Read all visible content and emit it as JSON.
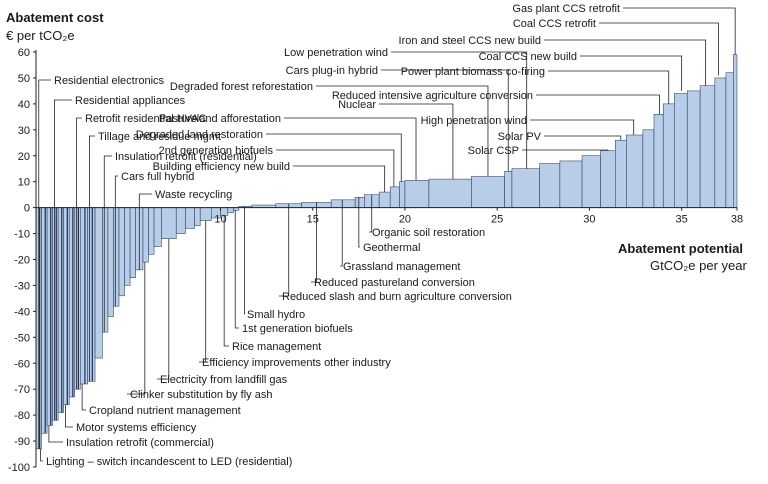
{
  "chart_data": {
    "type": "bar",
    "title": "",
    "ylabel": "Abatement cost",
    "yunit": "€ per tCO₂e",
    "xlabel": "Abatement potential",
    "xunit": "GtCO₂e per year",
    "ylim": [
      -100,
      60
    ],
    "xlim": [
      0,
      38
    ],
    "yticks": [
      60,
      50,
      40,
      30,
      20,
      10,
      0,
      -10,
      -20,
      -30,
      -40,
      -50,
      -60,
      -70,
      -80,
      -90,
      -100
    ],
    "xticks": [
      10,
      15,
      20,
      25,
      30,
      35,
      38
    ],
    "colors": {
      "bar_light": "#b8cde8",
      "bar_dark": "#1e2d55",
      "bar_edge": "#1e2d55"
    },
    "series": [
      {
        "x0": 0.0,
        "x1": 0.3,
        "value": -93
      },
      {
        "x0": 0.3,
        "x1": 0.6,
        "value": -87
      },
      {
        "x0": 0.6,
        "x1": 0.9,
        "value": -84
      },
      {
        "x0": 0.9,
        "x1": 1.2,
        "value": -82
      },
      {
        "x0": 1.2,
        "x1": 1.5,
        "value": -79
      },
      {
        "x0": 1.5,
        "x1": 1.8,
        "value": -76
      },
      {
        "x0": 1.8,
        "x1": 2.1,
        "value": -73
      },
      {
        "x0": 2.1,
        "x1": 2.4,
        "value": -70
      },
      {
        "x0": 2.4,
        "x1": 2.8,
        "value": -68
      },
      {
        "x0": 2.8,
        "x1": 3.2,
        "value": -67
      },
      {
        "x0": 3.2,
        "x1": 3.6,
        "value": -58
      },
      {
        "x0": 3.6,
        "x1": 3.9,
        "value": -48
      },
      {
        "x0": 3.9,
        "x1": 4.2,
        "value": -42
      },
      {
        "x0": 4.2,
        "x1": 4.5,
        "value": -38
      },
      {
        "x0": 4.5,
        "x1": 4.8,
        "value": -34
      },
      {
        "x0": 4.8,
        "x1": 5.1,
        "value": -30
      },
      {
        "x0": 5.1,
        "x1": 5.4,
        "value": -27
      },
      {
        "x0": 5.4,
        "x1": 5.8,
        "value": -24
      },
      {
        "x0": 5.8,
        "x1": 6.1,
        "value": -21
      },
      {
        "x0": 6.1,
        "x1": 6.4,
        "value": -18
      },
      {
        "x0": 6.4,
        "x1": 6.8,
        "value": -15
      },
      {
        "x0": 6.8,
        "x1": 7.6,
        "value": -12
      },
      {
        "x0": 7.6,
        "x1": 8.1,
        "value": -10
      },
      {
        "x0": 8.1,
        "x1": 8.6,
        "value": -8
      },
      {
        "x0": 8.6,
        "x1": 8.9,
        "value": -7
      },
      {
        "x0": 8.9,
        "x1": 9.5,
        "value": -5
      },
      {
        "x0": 9.5,
        "x1": 10.0,
        "value": -4
      },
      {
        "x0": 10.0,
        "x1": 10.4,
        "value": -3
      },
      {
        "x0": 10.4,
        "x1": 10.7,
        "value": -2
      },
      {
        "x0": 10.7,
        "x1": 11.0,
        "value": -1
      },
      {
        "x0": 11.0,
        "x1": 11.7,
        "value": 0.5
      },
      {
        "x0": 11.7,
        "x1": 13.0,
        "value": 1
      },
      {
        "x0": 13.0,
        "x1": 14.4,
        "value": 1.5
      },
      {
        "x0": 14.4,
        "x1": 16.0,
        "value": 2
      },
      {
        "x0": 16.0,
        "x1": 17.3,
        "value": 3
      },
      {
        "x0": 17.3,
        "x1": 17.8,
        "value": 4
      },
      {
        "x0": 17.8,
        "x1": 18.6,
        "value": 5
      },
      {
        "x0": 18.6,
        "x1": 19.2,
        "value": 6
      },
      {
        "x0": 19.2,
        "x1": 19.7,
        "value": 8
      },
      {
        "x0": 19.7,
        "x1": 20.0,
        "value": 10
      },
      {
        "x0": 20.0,
        "x1": 21.3,
        "value": 10.5
      },
      {
        "x0": 21.3,
        "x1": 23.6,
        "value": 11
      },
      {
        "x0": 23.6,
        "x1": 25.4,
        "value": 12
      },
      {
        "x0": 25.4,
        "x1": 25.8,
        "value": 14
      },
      {
        "x0": 25.8,
        "x1": 27.3,
        "value": 15
      },
      {
        "x0": 27.3,
        "x1": 28.4,
        "value": 17
      },
      {
        "x0": 28.4,
        "x1": 29.6,
        "value": 18
      },
      {
        "x0": 29.6,
        "x1": 30.6,
        "value": 20
      },
      {
        "x0": 30.6,
        "x1": 31.4,
        "value": 22
      },
      {
        "x0": 31.4,
        "x1": 32.0,
        "value": 26
      },
      {
        "x0": 32.0,
        "x1": 32.9,
        "value": 28
      },
      {
        "x0": 32.9,
        "x1": 33.5,
        "value": 30
      },
      {
        "x0": 33.5,
        "x1": 34.0,
        "value": 36
      },
      {
        "x0": 34.0,
        "x1": 34.6,
        "value": 40
      },
      {
        "x0": 34.6,
        "x1": 35.3,
        "value": 44
      },
      {
        "x0": 35.3,
        "x1": 36.0,
        "value": 45
      },
      {
        "x0": 36.0,
        "x1": 36.8,
        "value": 47
      },
      {
        "x0": 36.8,
        "x1": 37.4,
        "value": 50
      },
      {
        "x0": 37.4,
        "x1": 37.8,
        "value": 52
      },
      {
        "x0": 37.8,
        "x1": 38.0,
        "value": 59
      }
    ],
    "annotations": [
      {
        "label": "Gas plant CCS retrofit",
        "x": 37.9,
        "y": 59
      },
      {
        "label": "Coal CCS retrofit",
        "x": 37.0,
        "y": 51
      },
      {
        "label": "Iron and steel CCS new build",
        "x": 36.3,
        "y": 47
      },
      {
        "label": "Coal CCS new build",
        "x": 35.0,
        "y": 45
      },
      {
        "label": "Power plant biomass co-firing",
        "x": 34.3,
        "y": 40
      },
      {
        "label": "Reduced intensive agriculture conversion",
        "x": 33.8,
        "y": 36
      },
      {
        "label": "High penetration wind",
        "x": 32.4,
        "y": 28
      },
      {
        "label": "Solar PV",
        "x": 31.7,
        "y": 26
      },
      {
        "label": "Solar CSP",
        "x": 31.0,
        "y": 22
      },
      {
        "label": "Low penetration wind",
        "x": 26.6,
        "y": 15
      },
      {
        "label": "Cars plug-in hybrid",
        "x": 25.6,
        "y": 14
      },
      {
        "label": "Degraded forest reforestation",
        "x": 24.5,
        "y": 12
      },
      {
        "label": "Nuclear",
        "x": 22.6,
        "y": 11
      },
      {
        "label": "Pastureland afforestation",
        "x": 20.6,
        "y": 10.5
      },
      {
        "label": "Degraded land restoration",
        "x": 19.8,
        "y": 10
      },
      {
        "label": "2nd generation biofuels",
        "x": 19.4,
        "y": 8
      },
      {
        "label": "Building efficiency new build",
        "x": 18.9,
        "y": 6
      },
      {
        "label": "Residential electronics",
        "x": 0.15,
        "y": -93
      },
      {
        "label": "Residential appliances",
        "x": 1.0,
        "y": -82
      },
      {
        "label": "Retrofit residential HVAC",
        "x": 2.2,
        "y": -70
      },
      {
        "label": "Tillage and residue mgmt",
        "x": 2.9,
        "y": -67
      },
      {
        "label": "Insulation retrofit (residential)",
        "x": 3.7,
        "y": -48
      },
      {
        "label": "Cars full hybrid",
        "x": 4.3,
        "y": -38
      },
      {
        "label": "Waste recycling",
        "x": 5.6,
        "y": -24
      },
      {
        "label": "Organic soil restoration",
        "x": 18.2,
        "y": 5
      },
      {
        "label": "Geothermal",
        "x": 17.5,
        "y": 4
      },
      {
        "label": "Grassland management",
        "x": 16.6,
        "y": 3
      },
      {
        "label": "Reduced pastureland conversion",
        "x": 15.2,
        "y": 2
      },
      {
        "label": "Reduced slash and burn agriculture conversion",
        "x": 13.7,
        "y": 1.5
      },
      {
        "label": "Small hydro",
        "x": 11.3,
        "y": 0.5
      },
      {
        "label": "1st generation biofuels",
        "x": 10.8,
        "y": -1
      },
      {
        "label": "Rice management",
        "x": 10.2,
        "y": -3
      },
      {
        "label": "Efficiency improvements other industry",
        "x": 9.2,
        "y": -5
      },
      {
        "label": "Electricity from landfill gas",
        "x": 7.2,
        "y": -12
      },
      {
        "label": "Clinker substitution by fly ash",
        "x": 5.9,
        "y": -21
      },
      {
        "label": "Cropland nutrient management",
        "x": 2.5,
        "y": -68
      },
      {
        "label": "Motor systems efficiency",
        "x": 1.6,
        "y": -76
      },
      {
        "label": "Insulation retrofit (commercial)",
        "x": 0.7,
        "y": -84
      },
      {
        "label": "Lighting – switch incandescent to LED (residential)",
        "x": 0.25,
        "y": -93
      }
    ]
  }
}
